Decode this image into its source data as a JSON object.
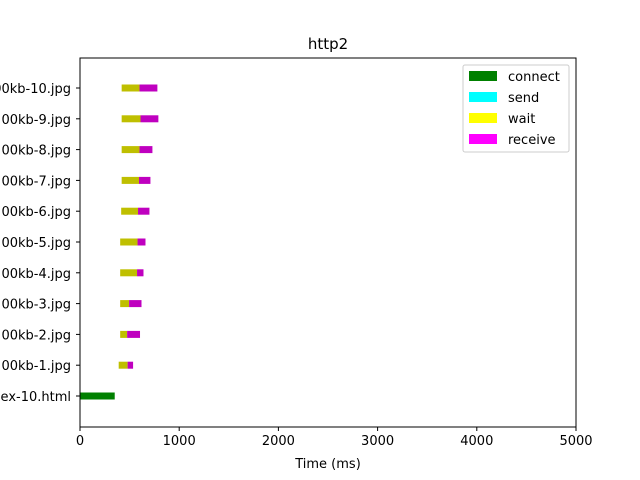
{
  "chart_data": {
    "type": "bar",
    "orientation": "horizontal",
    "stacked": true,
    "title": "http2",
    "xlabel": "Time (ms)",
    "ylabel": "",
    "xlim": [
      0,
      5000
    ],
    "x_ticks": [
      0,
      1000,
      2000,
      3000,
      4000,
      5000
    ],
    "grid": false,
    "legend_position": "top-right",
    "categories": [
      "ex-10.html",
      "00kb-1.jpg",
      "00kb-2.jpg",
      "00kb-3.jpg",
      "00kb-4.jpg",
      "00kb-5.jpg",
      "00kb-6.jpg",
      "00kb-7.jpg",
      "00kb-8.jpg",
      "00kb-9.jpg",
      "00kb-10.jpg"
    ],
    "legend": [
      {
        "name": "connect",
        "color": "#008000"
      },
      {
        "name": "send",
        "color": "#00ffff"
      },
      {
        "name": "wait",
        "color": "#ffff00"
      },
      {
        "name": "receive",
        "color": "#ff00ff"
      }
    ],
    "bars": [
      {
        "segments": [
          {
            "phase": "connect",
            "start": 0,
            "end": 350
          }
        ]
      },
      {
        "segments": [
          {
            "phase": "wait",
            "start": 390,
            "end": 480
          },
          {
            "phase": "receive",
            "start": 480,
            "end": 535
          }
        ]
      },
      {
        "segments": [
          {
            "phase": "wait",
            "start": 405,
            "end": 475
          },
          {
            "phase": "receive",
            "start": 475,
            "end": 605
          }
        ]
      },
      {
        "segments": [
          {
            "phase": "wait",
            "start": 405,
            "end": 495
          },
          {
            "phase": "receive",
            "start": 495,
            "end": 620
          }
        ]
      },
      {
        "segments": [
          {
            "phase": "wait",
            "start": 405,
            "end": 575
          },
          {
            "phase": "receive",
            "start": 575,
            "end": 640
          }
        ]
      },
      {
        "segments": [
          {
            "phase": "wait",
            "start": 405,
            "end": 580
          },
          {
            "phase": "receive",
            "start": 580,
            "end": 660
          }
        ]
      },
      {
        "segments": [
          {
            "phase": "wait",
            "start": 415,
            "end": 585
          },
          {
            "phase": "receive",
            "start": 585,
            "end": 700
          }
        ]
      },
      {
        "segments": [
          {
            "phase": "wait",
            "start": 420,
            "end": 595
          },
          {
            "phase": "receive",
            "start": 595,
            "end": 710
          }
        ]
      },
      {
        "segments": [
          {
            "phase": "wait",
            "start": 420,
            "end": 600
          },
          {
            "phase": "receive",
            "start": 600,
            "end": 730
          }
        ]
      },
      {
        "segments": [
          {
            "phase": "wait",
            "start": 420,
            "end": 610
          },
          {
            "phase": "receive",
            "start": 610,
            "end": 790
          }
        ]
      },
      {
        "segments": [
          {
            "phase": "wait",
            "start": 420,
            "end": 600
          },
          {
            "phase": "receive",
            "start": 600,
            "end": 780
          }
        ]
      }
    ],
    "phase_render_colors": {
      "connect": "#008000",
      "send": "#00bfbf",
      "wait": "#bfbf00",
      "receive": "#bf00bf"
    }
  }
}
